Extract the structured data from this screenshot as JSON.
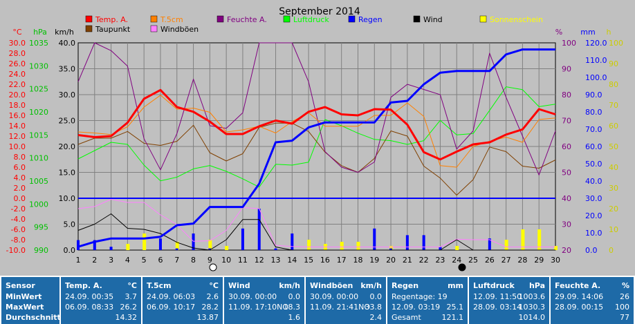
{
  "title": "September 2014",
  "legend": [
    {
      "label": "Temp. A.",
      "color": "#ff0000",
      "text_color": "#ff0000"
    },
    {
      "label": "T.5cm",
      "color": "#ff8000",
      "text_color": "#ff8000"
    },
    {
      "label": "Feuchte A.",
      "color": "#800080",
      "text_color": "#800080"
    },
    {
      "label": "Luftdruck",
      "color": "#00ff00",
      "text_color": "#00ff00"
    },
    {
      "label": "Regen",
      "color": "#0000ff",
      "text_color": "#0000ff"
    },
    {
      "label": "Wind",
      "color": "#000000",
      "text_color": "#000000"
    },
    {
      "label": "Sonnenschein",
      "color": "#ffff00",
      "text_color": "#ffff00"
    },
    {
      "label": "Taupunkt",
      "color": "#804000",
      "text_color": "#000000"
    },
    {
      "label": "Windböen",
      "color": "#ff80ff",
      "text_color": "#000000"
    }
  ],
  "axis_units": {
    "temp": "°C",
    "hpa": "hPa",
    "kmh": "km/h",
    "pct": "%",
    "mm": "mm",
    "h": "h"
  },
  "axes": {
    "temp_ticks": [
      "30.0",
      "28.0",
      "26.0",
      "24.0",
      "22.0",
      "20.0",
      "18.0",
      "16.0",
      "14.0",
      "12.0",
      "10.0",
      "8.0",
      "6.0",
      "4.0",
      "2.0",
      "0.0",
      "-2.0",
      "-4.0",
      "-6.0",
      "-8.0",
      "-10.0"
    ],
    "hpa_ticks": [
      "1035",
      "1030",
      "1025",
      "1020",
      "1015",
      "1010",
      "1005",
      "1000",
      "995",
      "990"
    ],
    "kmh_ticks": [
      "40.0",
      "35.0",
      "30.0",
      "25.0",
      "20.0",
      "15.0",
      "10.0",
      "5.0",
      "0.0"
    ],
    "pct_ticks": [
      "100",
      "90",
      "80",
      "70",
      "60",
      "50",
      "40",
      "30",
      "20"
    ],
    "mm_ticks": [
      "120.0",
      "110.0",
      "100.0",
      "90.0",
      "80.0",
      "70.0",
      "60.0",
      "50.0",
      "40.0",
      "30.0",
      "20.0",
      "10.0",
      "0.0"
    ],
    "h_ticks": [
      "100",
      "90",
      "80",
      "70",
      "60",
      "50",
      "40",
      "30",
      "20",
      "10",
      "0"
    ],
    "x_ticks": [
      "1",
      "2",
      "3",
      "4",
      "5",
      "6",
      "7",
      "8",
      "9",
      "10",
      "11",
      "12",
      "13",
      "14",
      "15",
      "16",
      "17",
      "18",
      "19",
      "20",
      "21",
      "22",
      "23",
      "24",
      "25",
      "26",
      "27",
      "28",
      "29",
      "30"
    ]
  },
  "colors": {
    "plot_bg": "#c0c0c0",
    "table_bg": "#1e6aa7",
    "grid": "#808080"
  },
  "chart_data": {
    "type": "line",
    "title": "September 2014",
    "x": [
      1,
      2,
      3,
      4,
      5,
      6,
      7,
      8,
      9,
      10,
      11,
      12,
      13,
      14,
      15,
      16,
      17,
      18,
      19,
      20,
      21,
      22,
      23,
      24,
      25,
      26,
      27,
      28,
      29,
      30
    ],
    "xlim": [
      1,
      30
    ],
    "series": [
      {
        "name": "Temp. A.",
        "unit": "°C",
        "ylim": [
          -10,
          30
        ],
        "values": [
          12.2,
          11.8,
          12.0,
          14.6,
          19.2,
          20.9,
          17.6,
          16.7,
          14.8,
          12.4,
          12.4,
          13.9,
          15.0,
          14.4,
          16.7,
          17.6,
          16.2,
          16.0,
          17.2,
          17.1,
          14.2,
          8.9,
          7.5,
          9.0,
          10.4,
          10.8,
          12.3,
          13.3,
          17.2,
          16.2
        ]
      },
      {
        "name": "T.5cm",
        "unit": "°C",
        "ylim": [
          -10,
          30
        ],
        "values": [
          12.8,
          12.6,
          12.3,
          13.8,
          17.6,
          19.9,
          17.2,
          17.4,
          16.6,
          12.8,
          13.2,
          13.9,
          12.6,
          14.8,
          16.5,
          13.9,
          13.9,
          13.9,
          16.0,
          16.0,
          18.4,
          15.8,
          6.3,
          6.0,
          10.0,
          11.0,
          11.8,
          10.8,
          15.2,
          15.5
        ]
      },
      {
        "name": "Feuchte A.",
        "unit": "%",
        "ylim": [
          20,
          100
        ],
        "values": [
          85,
          100,
          97,
          91,
          63,
          51,
          65,
          86,
          68,
          67,
          73,
          100,
          100,
          100,
          85,
          58,
          52,
          50,
          54,
          79,
          84,
          82,
          80,
          59,
          66,
          96,
          79,
          64,
          49,
          66
        ]
      },
      {
        "name": "Luftdruck",
        "unit": "hPa",
        "ylim": [
          990,
          1040
        ],
        "values": [
          1012.0,
          1014.0,
          1016.0,
          1015.5,
          1010.5,
          1006.7,
          1007.6,
          1009.6,
          1010.4,
          1009.0,
          1007.2,
          1005.2,
          1010.7,
          1010.5,
          1011.2,
          1021.5,
          1020.0,
          1018.2,
          1016.7,
          1016.4,
          1015.5,
          1016.4,
          1021.3,
          1017.8,
          1018.1,
          1023.7,
          1029.4,
          1028.7,
          1024.6,
          1025.2
        ]
      },
      {
        "name": "Regen",
        "unit": "mm",
        "ylim": [
          0,
          125
        ],
        "values": [
          2,
          5,
          7,
          7,
          7,
          8,
          15,
          16,
          26,
          26,
          26,
          40,
          65,
          66,
          74,
          77,
          77,
          77,
          77,
          89,
          90,
          100,
          107,
          108,
          108,
          108,
          118,
          121,
          121,
          121
        ]
      },
      {
        "name": "Wind",
        "unit": "km/h",
        "ylim": [
          0,
          40
        ],
        "values": [
          3.8,
          5.0,
          7.0,
          4.2,
          4.0,
          3.2,
          1.5,
          0.4,
          0.0,
          2.0,
          5.9,
          5.9,
          0.6,
          0.0,
          0.0,
          0.0,
          0.0,
          0.0,
          0.0,
          0.0,
          0.0,
          0.0,
          0.0,
          2.0,
          0.0,
          0.0,
          0.0,
          0.0,
          0.0,
          0.0
        ]
      },
      {
        "name": "Taupunkt",
        "unit": "°C",
        "ylim": [
          -10,
          30
        ],
        "values": [
          10.4,
          11.6,
          11.6,
          12.9,
          10.6,
          10.2,
          11.0,
          14.1,
          8.8,
          7.2,
          8.6,
          13.7,
          14.5,
          14.5,
          12.9,
          8.9,
          6.3,
          5.0,
          7.7,
          13.0,
          12.0,
          6.2,
          3.9,
          0.6,
          3.6,
          9.9,
          9.0,
          6.2,
          5.8,
          7.4
        ]
      },
      {
        "name": "Windböen",
        "unit": "km/h",
        "ylim": [
          0,
          40
        ],
        "values": [
          8.0,
          8.4,
          9.8,
          9.2,
          9.2,
          6.8,
          4.9,
          1.7,
          1.8,
          3.8,
          8.2,
          8.0,
          0.9,
          0.7,
          0.6,
          0.6,
          0.6,
          0.6,
          0.6,
          0.6,
          0.6,
          0.6,
          0.6,
          2.1,
          2.0,
          2.0,
          0.6,
          0.6,
          0.6,
          0.6
        ]
      },
      {
        "name": "Regen (Tag)",
        "unit": "mm",
        "ylim": [
          0,
          125
        ],
        "values": [
          6,
          6,
          2,
          0,
          0,
          7,
          1,
          10,
          1,
          0,
          13,
          25,
          1,
          10,
          0,
          0,
          0,
          0,
          13,
          1,
          9,
          9,
          2,
          0,
          0,
          7,
          0,
          0,
          0,
          0
        ]
      },
      {
        "name": "Sonnenschein",
        "unit": "h",
        "ylim": [
          0,
          100
        ],
        "values": [
          0,
          0,
          0,
          3,
          8,
          0,
          4,
          0,
          5,
          2,
          0,
          0,
          0,
          0,
          5,
          3,
          4,
          4,
          0,
          2,
          0,
          0,
          0,
          2,
          0,
          0,
          5,
          10,
          10,
          2
        ]
      }
    ]
  },
  "table": {
    "columns": [
      {
        "header": "Sensor",
        "unit": "",
        "rows": [
          {
            "label": "MinWert",
            "value": ""
          },
          {
            "label": "MaxWert",
            "value": ""
          },
          {
            "label": "Durchschnitt",
            "value": ""
          }
        ]
      },
      {
        "header": "Temp. A.",
        "unit": "°C",
        "rows": [
          {
            "label": "24.09.  00:35",
            "value": "3.7"
          },
          {
            "label": "06.09.  08:33",
            "value": "26.2"
          },
          {
            "label": "",
            "value": "14.32"
          }
        ]
      },
      {
        "header": "T.5cm",
        "unit": "°C",
        "rows": [
          {
            "label": "24.09.  06:03",
            "value": "2.6"
          },
          {
            "label": "06.09.  10:17",
            "value": "28.2"
          },
          {
            "label": "",
            "value": "13.87"
          }
        ]
      },
      {
        "header": "Wind",
        "unit": "km/h",
        "rows": [
          {
            "label": "30.09.  00:00",
            "value": "0.0"
          },
          {
            "label": "11.09.  17:10NO",
            "value": "18.3"
          },
          {
            "label": "",
            "value": "1.6"
          }
        ]
      },
      {
        "header": "Windböen",
        "unit": "km/h",
        "rows": [
          {
            "label": "30.09.  00:00",
            "value": "0.0"
          },
          {
            "label": "11.09.  21:41NO",
            "value": "33.8"
          },
          {
            "label": "",
            "value": "2.4"
          }
        ]
      },
      {
        "header": "Regen",
        "unit": "mm",
        "rows": [
          {
            "label": "Regentage: 19",
            "value": ""
          },
          {
            "label": "12.09.  03:19",
            "value": "25.1"
          },
          {
            "label": "Gesamt",
            "value": "121.1"
          }
        ]
      },
      {
        "header": "Luftdruck",
        "unit": "hPa",
        "rows": [
          {
            "label": "12.09.  11:50",
            "value": "1003.6"
          },
          {
            "label": "28.09.  03:14",
            "value": "1030.3"
          },
          {
            "label": "",
            "value": "1014.0"
          }
        ]
      },
      {
        "header": "Feuchte A.",
        "unit": "%",
        "rows": [
          {
            "label": "29.09.  14:06",
            "value": "26"
          },
          {
            "label": "28.09.  00:15",
            "value": "100"
          },
          {
            "label": "",
            "value": "77"
          }
        ]
      }
    ]
  }
}
